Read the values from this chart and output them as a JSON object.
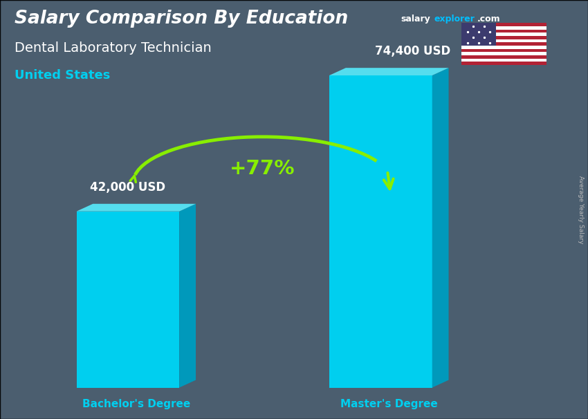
{
  "title_main": "Salary Comparison By Education",
  "subtitle1": "Dental Laboratory Technician",
  "subtitle2": "United States",
  "categories": [
    "Bachelor's Degree",
    "Master's Degree"
  ],
  "values": [
    42000,
    74400
  ],
  "value_labels": [
    "42,000 USD",
    "74,400 USD"
  ],
  "pct_change": "+77%",
  "bar_color_face": "#00CFEF",
  "bar_color_top": "#55DDEE",
  "bar_color_side": "#0099BB",
  "bg_color": "#5a7080",
  "text_color_white": "#FFFFFF",
  "text_color_cyan": "#00CFEF",
  "text_color_green": "#88EE00",
  "arrow_color": "#88EE00",
  "ylabel": "Average Yearly Salary",
  "ylabel_color": "#CCCCCC",
  "salary_color": "#FFFFFF",
  "explorer_color": "#00BFFF",
  "com_color": "#FFFFFF",
  "flag_stripe_red": "#B22234",
  "flag_stripe_white": "#FFFFFF",
  "flag_canton": "#3C3B6E"
}
